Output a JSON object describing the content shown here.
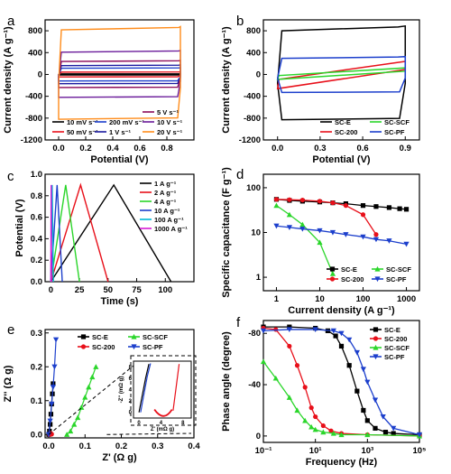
{
  "figure": {
    "panels": [
      "a",
      "b",
      "c",
      "d",
      "e",
      "f"
    ]
  },
  "chart_data": [
    {
      "id": "a",
      "type": "line",
      "xlabel": "Potential (V)",
      "ylabel": "Current density (A g⁻¹)",
      "xlim": [
        -0.1,
        1.0
      ],
      "ylim": [
        -1200,
        1000
      ],
      "xticks": [
        "0.0",
        "0.2",
        "0.4",
        "0.6",
        "0.8"
      ],
      "xtick_values": [
        0.0,
        0.2,
        0.4,
        0.6,
        0.8
      ],
      "yticks": [
        "-1200",
        "-800",
        "-400",
        "0",
        "400",
        "800"
      ],
      "ytick_values": [
        -1200,
        -800,
        -400,
        0,
        400,
        800
      ],
      "series": [
        {
          "name": "10 mV s⁻¹",
          "color": "#000000",
          "xmin": 0.0,
          "xmax": 0.9,
          "top": 10,
          "bottom": -10
        },
        {
          "name": "50 mV s⁻¹",
          "color": "#e8101a",
          "xmin": 0.0,
          "xmax": 0.9,
          "top": 45,
          "bottom": -45
        },
        {
          "name": "200 mV s⁻¹",
          "color": "#1c3fcc",
          "xmin": 0.0,
          "xmax": 0.9,
          "top": 120,
          "bottom": -120
        },
        {
          "name": "1 V s⁻¹",
          "color": "#1a1aa0",
          "xmin": 0.0,
          "xmax": 0.9,
          "top": 170,
          "bottom": -170
        },
        {
          "name": "5 V s⁻¹",
          "color": "#8b0a5a",
          "xmin": 0.0,
          "xmax": 0.9,
          "top": 250,
          "bottom": -240
        },
        {
          "name": "10 V s⁻¹",
          "color": "#6a1b9a",
          "xmin": 0.0,
          "xmax": 0.9,
          "top": 430,
          "bottom": -420
        },
        {
          "name": "20 V s⁻¹",
          "color": "#ff8c1a",
          "xmin": 0.0,
          "xmax": 0.9,
          "top": 860,
          "bottom": -820
        }
      ]
    },
    {
      "id": "b",
      "type": "line",
      "xlabel": "Potential (V)",
      "ylabel": "Current density (A g⁻¹)",
      "xlim": [
        -0.1,
        1.0
      ],
      "ylim": [
        -1200,
        1000
      ],
      "xticks": [
        "0.0",
        "0.3",
        "0.6",
        "0.9"
      ],
      "xtick_values": [
        0.0,
        0.3,
        0.6,
        0.9
      ],
      "yticks": [
        "-1200",
        "-800",
        "-400",
        "0",
        "400",
        "800"
      ],
      "ytick_values": [
        -1200,
        -800,
        -400,
        0,
        400,
        800
      ],
      "series": [
        {
          "name": "SC-E",
          "color": "#000000",
          "shape": "rect",
          "top": 870,
          "bottom": -830
        },
        {
          "name": "SC-200",
          "color": "#e8101a",
          "shape": "slanted",
          "top_left": -90,
          "top_right": 240,
          "bottom_left": -260,
          "bottom_right": 90
        },
        {
          "name": "SC-SCF",
          "color": "#2bd62b",
          "shape": "slanted",
          "top_left": -20,
          "top_right": 120,
          "bottom_left": -90,
          "bottom_right": 60
        },
        {
          "name": "SC-PF",
          "color": "#1c3fcc",
          "shape": "rect",
          "top": 320,
          "bottom": -330
        }
      ]
    },
    {
      "id": "c",
      "type": "line",
      "xlabel": "Time (s)",
      "ylabel": "Potential (V)",
      "xlim": [
        -5,
        125
      ],
      "ylim": [
        0.0,
        1.0
      ],
      "xticks": [
        "0",
        "25",
        "50",
        "75",
        "100"
      ],
      "xtick_values": [
        0,
        25,
        50,
        75,
        100
      ],
      "yticks": [
        "0.0",
        "0.2",
        "0.4",
        "0.6",
        "0.8",
        "1.0"
      ],
      "ytick_values": [
        0.0,
        0.2,
        0.4,
        0.6,
        0.8,
        1.0
      ],
      "series": [
        {
          "name": "1 A g⁻¹",
          "color": "#000000",
          "x": [
            0,
            55,
            105
          ],
          "y": [
            0,
            0.9,
            0
          ]
        },
        {
          "name": "2 A g⁻¹",
          "color": "#e8101a",
          "x": [
            0,
            26,
            50
          ],
          "y": [
            0,
            0.9,
            0
          ]
        },
        {
          "name": "4 A g⁻¹",
          "color": "#2bd62b",
          "x": [
            0,
            13,
            25
          ],
          "y": [
            0,
            0.9,
            0
          ]
        },
        {
          "name": "10 A g⁻¹",
          "color": "#1c3fcc",
          "x": [
            0,
            5.5,
            10
          ],
          "y": [
            0,
            0.9,
            0
          ]
        },
        {
          "name": "100 A g⁻¹",
          "color": "#00b7d6",
          "x": [
            0,
            1.2,
            2.2
          ],
          "y": [
            0,
            0.9,
            0
          ]
        },
        {
          "name": "1000 A g⁻¹",
          "color": "#d61cd6",
          "x": [
            0,
            0.3,
            0.6
          ],
          "y": [
            0,
            0.9,
            0
          ]
        }
      ]
    },
    {
      "id": "d",
      "type": "line",
      "xlabel": "Current density (A g⁻¹)",
      "ylabel": "Specific capacitance (F g⁻¹)",
      "xscale": "log",
      "yscale": "log",
      "xlim": [
        0.5,
        2000
      ],
      "ylim": [
        0.5,
        200
      ],
      "xticks": [
        "1",
        "10",
        "100",
        "1000"
      ],
      "xtick_values": [
        1,
        10,
        100,
        1000
      ],
      "yticks": [
        "1",
        "10",
        "100"
      ],
      "ytick_values": [
        1,
        10,
        100
      ],
      "series": [
        {
          "name": "SC-E",
          "color": "#000000",
          "marker": "square",
          "x": [
            1,
            2,
            4,
            10,
            20,
            40,
            100,
            200,
            400,
            700,
            1000
          ],
          "y": [
            55,
            52,
            50,
            48,
            46,
            44,
            40,
            38,
            36,
            34,
            33
          ]
        },
        {
          "name": "SC-200",
          "color": "#e8101a",
          "marker": "circle",
          "x": [
            1,
            2,
            4,
            10,
            20,
            40,
            100,
            200
          ],
          "y": [
            55,
            54,
            53,
            50,
            46,
            40,
            25,
            9
          ]
        },
        {
          "name": "SC-SCF",
          "color": "#2bd62b",
          "marker": "triangle-up",
          "x": [
            1,
            2,
            4,
            10,
            20
          ],
          "y": [
            40,
            25,
            15,
            6,
            1.2
          ]
        },
        {
          "name": "SC-PF",
          "color": "#1c3fcc",
          "marker": "triangle-down",
          "x": [
            1,
            2,
            4,
            10,
            20,
            40,
            100,
            200,
            400,
            1000
          ],
          "y": [
            14,
            13,
            12,
            11,
            10,
            9,
            8,
            7,
            6.5,
            5.5
          ]
        }
      ]
    },
    {
      "id": "e",
      "type": "line",
      "xlabel": "Z' (Ω g)",
      "ylabel": "Z'' (Ω g)",
      "xlim": [
        -0.01,
        0.4
      ],
      "ylim": [
        -0.01,
        0.31
      ],
      "xticks": [
        "0.0",
        "0.1",
        "0.2",
        "0.3",
        "0.4"
      ],
      "xtick_values": [
        0.0,
        0.1,
        0.2,
        0.3,
        0.4
      ],
      "yticks": [
        "0.0",
        "0.1",
        "0.2",
        "0.3"
      ],
      "ytick_values": [
        0.0,
        0.1,
        0.2,
        0.3
      ],
      "series": [
        {
          "name": "SC-E",
          "color": "#000000",
          "marker": "square",
          "x": [
            0.0,
            0.002,
            0.004,
            0.006,
            0.008,
            0.01,
            0.012
          ],
          "y": [
            0,
            0.01,
            0.03,
            0.06,
            0.09,
            0.12,
            0.15
          ]
        },
        {
          "name": "SC-200",
          "color": "#e8101a",
          "marker": "circle",
          "x": [
            0.002,
            0.004,
            0.006,
            0.008
          ],
          "y": [
            0,
            0.002,
            0.003,
            0.001
          ]
        },
        {
          "name": "SC-SCF",
          "color": "#2bd62b",
          "marker": "triangle-up",
          "x": [
            0.05,
            0.06,
            0.07,
            0.08,
            0.09,
            0.1,
            0.11,
            0.12,
            0.13
          ],
          "y": [
            0,
            0.01,
            0.03,
            0.05,
            0.08,
            0.11,
            0.14,
            0.17,
            0.2
          ]
        },
        {
          "name": "SC-PF",
          "color": "#1c3fcc",
          "marker": "triangle-down",
          "x": [
            0.0,
            0.004,
            0.008,
            0.012,
            0.016,
            0.02
          ],
          "y": [
            0,
            0.04,
            0.09,
            0.14,
            0.2,
            0.28
          ]
        }
      ],
      "inset": {
        "xlabel": "Z' (mΩ g)",
        "ylabel": "-Z'' (mΩ g)",
        "xticks": [
          "0",
          "4",
          "8"
        ],
        "xtick_values": [
          0,
          4,
          8
        ],
        "yticks": [
          "0",
          "2",
          "4",
          "6",
          "8"
        ],
        "ytick_values": [
          0,
          2,
          4,
          6,
          8
        ],
        "xlim": [
          -1,
          9.5
        ],
        "ylim": [
          -1,
          9
        ]
      }
    },
    {
      "id": "f",
      "type": "line",
      "xlabel": "Frequency (Hz)",
      "ylabel": "Phase angle (degree)",
      "xscale": "log",
      "xlim": [
        0.1,
        100000
      ],
      "ylim": [
        5,
        -90
      ],
      "xticks": [
        "10⁻¹",
        "10¹",
        "10³",
        "10⁵"
      ],
      "xtick_values": [
        0.1,
        10,
        1000,
        100000
      ],
      "yticks": [
        "-80",
        "-40",
        "0"
      ],
      "ytick_values": [
        -80,
        -40,
        0
      ],
      "series": [
        {
          "name": "SC-E",
          "color": "#000000",
          "marker": "square",
          "x": [
            0.1,
            1,
            10,
            30,
            60,
            100,
            200,
            400,
            700,
            1000,
            2000,
            5000,
            10000,
            100000
          ],
          "y": [
            -85,
            -85,
            -84,
            -82,
            -78,
            -70,
            -55,
            -35,
            -20,
            -12,
            -6,
            -3,
            -2,
            -1
          ]
        },
        {
          "name": "SC-200",
          "color": "#e8101a",
          "marker": "circle",
          "x": [
            0.1,
            0.3,
            1,
            2,
            4,
            7,
            10,
            20,
            40,
            100,
            1000,
            100000
          ],
          "y": [
            -84,
            -83,
            -70,
            -55,
            -38,
            -22,
            -15,
            -8,
            -4,
            -2,
            -1,
            0
          ]
        },
        {
          "name": "SC-SCF",
          "color": "#2bd62b",
          "marker": "triangle-up",
          "x": [
            0.1,
            0.3,
            1,
            2,
            4,
            7,
            10,
            20,
            50,
            100,
            1000,
            100000
          ],
          "y": [
            -58,
            -45,
            -30,
            -20,
            -12,
            -7,
            -5,
            -3,
            -2,
            -1,
            -1,
            0
          ]
        },
        {
          "name": "SC-PF",
          "color": "#1c3fcc",
          "marker": "triangle-down",
          "x": [
            0.1,
            1,
            10,
            50,
            100,
            200,
            400,
            700,
            1000,
            2000,
            4000,
            10000,
            100000
          ],
          "y": [
            -82,
            -83,
            -83,
            -82,
            -80,
            -75,
            -65,
            -52,
            -42,
            -28,
            -15,
            -6,
            -1
          ]
        }
      ]
    }
  ],
  "legends": {
    "a": [
      "10 mV s⁻¹",
      "50 mV s⁻¹",
      "200 mV s⁻¹",
      "1 V s⁻¹",
      "5 V s⁻¹",
      "10 V s⁻¹",
      "20 V s⁻¹"
    ],
    "b": [
      "SC-E",
      "SC-200",
      "SC-SCF",
      "SC-PF"
    ],
    "c": [
      "1 A g⁻¹",
      "2 A g⁻¹",
      "4 A g⁻¹",
      "10 A g⁻¹",
      "100 A g⁻¹",
      "1000 A g⁻¹"
    ],
    "d": [
      "SC-E",
      "SC-SCF",
      "SC-200",
      "SC-PF"
    ],
    "e": [
      "SC-E",
      "SC-SCF",
      "SC-200",
      "SC-PF"
    ],
    "f": [
      "SC-E",
      "SC-200",
      "SC-SCF",
      "SC-PF"
    ]
  }
}
